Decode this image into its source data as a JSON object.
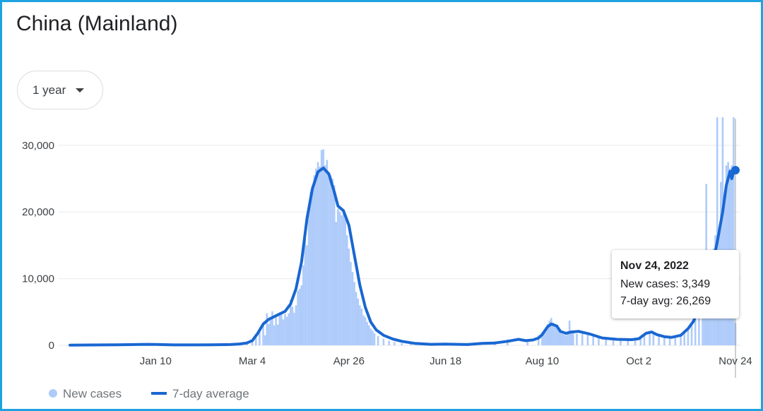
{
  "title": "China (Mainland)",
  "range_selector": {
    "label": "1 year"
  },
  "colors": {
    "bars": "#aecbfa",
    "line": "#1967d2",
    "grid": "#e8eaed",
    "frame": "#1fa3e0"
  },
  "legend": {
    "bars_label": "New cases",
    "line_label": "7-day average"
  },
  "tooltip": {
    "date": "Nov 24, 2022",
    "new_cases_label": "New cases: 3,349",
    "avg_label": "7-day avg: 26,269"
  },
  "chart_data": {
    "type": "bar",
    "title": "",
    "xlabel": "",
    "ylabel": "",
    "ylim": [
      0,
      34000
    ],
    "y_ticks": [
      0,
      10000,
      20000,
      30000
    ],
    "y_tick_labels": [
      "0",
      "10,000",
      "20,000",
      "30,000"
    ],
    "x_domain": [
      "2021-11-24",
      "2022-11-24"
    ],
    "x_ticks": [
      {
        "date": "2022-01-10",
        "label": "Jan 10"
      },
      {
        "date": "2022-03-04",
        "label": "Mar 4"
      },
      {
        "date": "2022-04-26",
        "label": "Apr 26"
      },
      {
        "date": "2022-06-18",
        "label": "Jun 18"
      },
      {
        "date": "2022-08-10",
        "label": "Aug 10"
      },
      {
        "date": "2022-10-02",
        "label": "Oct 2"
      },
      {
        "date": "2022-11-24",
        "label": "Nov 24"
      }
    ],
    "legend_position": "bottom-left",
    "grid": true,
    "series": [
      {
        "name": "New cases",
        "type": "bar",
        "points": [
          [
            "2022-02-15",
            150
          ],
          [
            "2022-02-25",
            250
          ],
          [
            "2022-03-01",
            400
          ],
          [
            "2022-03-04",
            600
          ],
          [
            "2022-03-06",
            1200
          ],
          [
            "2022-03-08",
            2000
          ],
          [
            "2022-03-10",
            3400
          ],
          [
            "2022-03-11",
            1500
          ],
          [
            "2022-03-12",
            4800
          ],
          [
            "2022-03-13",
            3200
          ],
          [
            "2022-03-14",
            3800
          ],
          [
            "2022-03-15",
            5100
          ],
          [
            "2022-03-16",
            3000
          ],
          [
            "2022-03-17",
            4200
          ],
          [
            "2022-03-18",
            3100
          ],
          [
            "2022-03-19",
            4500
          ],
          [
            "2022-03-20",
            4600
          ],
          [
            "2022-03-21",
            3900
          ],
          [
            "2022-03-22",
            4700
          ],
          [
            "2022-03-23",
            4300
          ],
          [
            "2022-03-24",
            4800
          ],
          [
            "2022-03-25",
            6800
          ],
          [
            "2022-03-26",
            5800
          ],
          [
            "2022-03-27",
            4900
          ],
          [
            "2022-03-28",
            6000
          ],
          [
            "2022-03-29",
            8200
          ],
          [
            "2022-03-30",
            8500
          ],
          [
            "2022-03-31",
            9000
          ],
          [
            "2022-04-01",
            12000
          ],
          [
            "2022-04-02",
            16000
          ],
          [
            "2022-04-03",
            15000
          ],
          [
            "2022-04-04",
            20500
          ],
          [
            "2022-04-05",
            23000
          ],
          [
            "2022-04-06",
            24000
          ],
          [
            "2022-04-07",
            25500
          ],
          [
            "2022-04-08",
            26500
          ],
          [
            "2022-04-09",
            27500
          ],
          [
            "2022-04-10",
            26800
          ],
          [
            "2022-04-11",
            29300
          ],
          [
            "2022-04-12",
            29400
          ],
          [
            "2022-04-13",
            27000
          ],
          [
            "2022-04-14",
            27800
          ],
          [
            "2022-04-15",
            26000
          ],
          [
            "2022-04-16",
            25500
          ],
          [
            "2022-04-17",
            25000
          ],
          [
            "2022-04-18",
            24000
          ],
          [
            "2022-04-19",
            18500
          ],
          [
            "2022-04-20",
            20500
          ],
          [
            "2022-04-21",
            20000
          ],
          [
            "2022-04-22",
            19500
          ],
          [
            "2022-04-23",
            20000
          ],
          [
            "2022-04-24",
            19000
          ],
          [
            "2022-04-25",
            16500
          ],
          [
            "2022-04-26",
            14500
          ],
          [
            "2022-04-27",
            12500
          ],
          [
            "2022-04-28",
            11000
          ],
          [
            "2022-04-29",
            9500
          ],
          [
            "2022-04-30",
            8000
          ],
          [
            "2022-05-01",
            7000
          ],
          [
            "2022-05-02",
            6000
          ],
          [
            "2022-05-03",
            5500
          ],
          [
            "2022-05-04",
            4500
          ],
          [
            "2022-05-05",
            4200
          ],
          [
            "2022-05-06",
            3500
          ],
          [
            "2022-05-07",
            3000
          ],
          [
            "2022-05-08",
            2500
          ],
          [
            "2022-05-09",
            2200
          ],
          [
            "2022-05-10",
            1800
          ],
          [
            "2022-05-12",
            1400
          ],
          [
            "2022-05-15",
            1000
          ],
          [
            "2022-05-18",
            700
          ],
          [
            "2022-05-21",
            500
          ],
          [
            "2022-05-25",
            300
          ],
          [
            "2022-05-30",
            200
          ],
          [
            "2022-07-15",
            600
          ],
          [
            "2022-07-22",
            900
          ],
          [
            "2022-08-02",
            800
          ],
          [
            "2022-08-08",
            1500
          ],
          [
            "2022-08-10",
            2000
          ],
          [
            "2022-08-11",
            2300
          ],
          [
            "2022-08-12",
            2700
          ],
          [
            "2022-08-13",
            3200
          ],
          [
            "2022-08-14",
            3700
          ],
          [
            "2022-08-15",
            4100
          ],
          [
            "2022-08-16",
            3400
          ],
          [
            "2022-08-17",
            3000
          ],
          [
            "2022-08-18",
            2800
          ],
          [
            "2022-08-19",
            2500
          ],
          [
            "2022-08-20",
            1900
          ],
          [
            "2022-08-21",
            1700
          ],
          [
            "2022-08-22",
            1600
          ],
          [
            "2022-08-23",
            1500
          ],
          [
            "2022-08-24",
            1800
          ],
          [
            "2022-08-25",
            3700
          ],
          [
            "2022-08-26",
            2100
          ],
          [
            "2022-08-27",
            1900
          ],
          [
            "2022-08-29",
            1700
          ],
          [
            "2022-09-01",
            1800
          ],
          [
            "2022-09-04",
            1600
          ],
          [
            "2022-09-07",
            1500
          ],
          [
            "2022-09-10",
            1300
          ],
          [
            "2022-09-14",
            1100
          ],
          [
            "2022-09-18",
            900
          ],
          [
            "2022-09-22",
            800
          ],
          [
            "2022-09-26",
            900
          ],
          [
            "2022-09-30",
            1000
          ],
          [
            "2022-10-03",
            1200
          ],
          [
            "2022-10-05",
            1800
          ],
          [
            "2022-10-08",
            2000
          ],
          [
            "2022-10-10",
            1800
          ],
          [
            "2022-10-13",
            1500
          ],
          [
            "2022-10-16",
            1300
          ],
          [
            "2022-10-19",
            1200
          ],
          [
            "2022-10-22",
            1300
          ],
          [
            "2022-10-25",
            1600
          ],
          [
            "2022-10-27",
            2000
          ],
          [
            "2022-10-29",
            2400
          ],
          [
            "2022-10-31",
            3000
          ],
          [
            "2022-11-02",
            4200
          ],
          [
            "2022-11-04",
            5800
          ],
          [
            "2022-11-06",
            7500
          ],
          [
            "2022-11-07",
            9000
          ],
          [
            "2022-11-08",
            24200
          ],
          [
            "2022-11-09",
            8500
          ],
          [
            "2022-11-10",
            10500
          ],
          [
            "2022-11-11",
            13000
          ],
          [
            "2022-11-12",
            14500
          ],
          [
            "2022-11-13",
            16500
          ],
          [
            "2022-11-14",
            34200
          ],
          [
            "2022-11-15",
            17000
          ],
          [
            "2022-11-16",
            24500
          ],
          [
            "2022-11-17",
            34200
          ],
          [
            "2022-11-18",
            22000
          ],
          [
            "2022-11-19",
            27000
          ],
          [
            "2022-11-20",
            27500
          ],
          [
            "2022-11-21",
            26500
          ],
          [
            "2022-11-22",
            27000
          ],
          [
            "2022-11-23",
            34200
          ],
          [
            "2022-11-24",
            3349
          ]
        ]
      },
      {
        "name": "7-day average",
        "type": "line",
        "points": [
          [
            "2021-11-24",
            30
          ],
          [
            "2021-12-05",
            50
          ],
          [
            "2021-12-20",
            90
          ],
          [
            "2022-01-05",
            150
          ],
          [
            "2022-01-10",
            130
          ],
          [
            "2022-01-20",
            60
          ],
          [
            "2022-02-01",
            60
          ],
          [
            "2022-02-10",
            80
          ],
          [
            "2022-02-20",
            120
          ],
          [
            "2022-02-25",
            200
          ],
          [
            "2022-03-01",
            350
          ],
          [
            "2022-03-04",
            700
          ],
          [
            "2022-03-07",
            1800
          ],
          [
            "2022-03-10",
            3200
          ],
          [
            "2022-03-13",
            3900
          ],
          [
            "2022-03-16",
            4300
          ],
          [
            "2022-03-19",
            4700
          ],
          [
            "2022-03-22",
            5100
          ],
          [
            "2022-03-25",
            6200
          ],
          [
            "2022-03-28",
            8500
          ],
          [
            "2022-03-31",
            12500
          ],
          [
            "2022-04-03",
            19000
          ],
          [
            "2022-04-06",
            23500
          ],
          [
            "2022-04-09",
            26000
          ],
          [
            "2022-04-12",
            26600
          ],
          [
            "2022-04-15",
            25700
          ],
          [
            "2022-04-18",
            23000
          ],
          [
            "2022-04-20",
            20900
          ],
          [
            "2022-04-23",
            20200
          ],
          [
            "2022-04-26",
            18000
          ],
          [
            "2022-04-29",
            13500
          ],
          [
            "2022-05-02",
            9000
          ],
          [
            "2022-05-05",
            5700
          ],
          [
            "2022-05-08",
            3500
          ],
          [
            "2022-05-11",
            2300
          ],
          [
            "2022-05-15",
            1500
          ],
          [
            "2022-05-20",
            950
          ],
          [
            "2022-05-25",
            600
          ],
          [
            "2022-06-01",
            300
          ],
          [
            "2022-06-10",
            150
          ],
          [
            "2022-06-18",
            180
          ],
          [
            "2022-06-30",
            120
          ],
          [
            "2022-07-08",
            300
          ],
          [
            "2022-07-15",
            350
          ],
          [
            "2022-07-22",
            600
          ],
          [
            "2022-07-28",
            900
          ],
          [
            "2022-08-01",
            700
          ],
          [
            "2022-08-05",
            800
          ],
          [
            "2022-08-08",
            1100
          ],
          [
            "2022-08-10",
            1600
          ],
          [
            "2022-08-13",
            2800
          ],
          [
            "2022-08-15",
            3200
          ],
          [
            "2022-08-18",
            2900
          ],
          [
            "2022-08-20",
            2100
          ],
          [
            "2022-08-23",
            1800
          ],
          [
            "2022-08-26",
            2000
          ],
          [
            "2022-08-30",
            2100
          ],
          [
            "2022-09-05",
            1700
          ],
          [
            "2022-09-12",
            1100
          ],
          [
            "2022-09-20",
            900
          ],
          [
            "2022-09-28",
            850
          ],
          [
            "2022-10-02",
            1000
          ],
          [
            "2022-10-06",
            1800
          ],
          [
            "2022-10-09",
            2000
          ],
          [
            "2022-10-12",
            1600
          ],
          [
            "2022-10-16",
            1300
          ],
          [
            "2022-10-20",
            1200
          ],
          [
            "2022-10-25",
            1500
          ],
          [
            "2022-10-29",
            2500
          ],
          [
            "2022-11-01",
            3600
          ],
          [
            "2022-11-03",
            5000
          ],
          [
            "2022-11-05",
            6400
          ],
          [
            "2022-11-08",
            9000
          ],
          [
            "2022-11-11",
            11500
          ],
          [
            "2022-11-14",
            15500
          ],
          [
            "2022-11-17",
            20000
          ],
          [
            "2022-11-19",
            24000
          ],
          [
            "2022-11-21",
            26100
          ],
          [
            "2022-11-22",
            25000
          ],
          [
            "2022-11-23",
            26000
          ],
          [
            "2022-11-24",
            26269
          ]
        ]
      }
    ]
  }
}
